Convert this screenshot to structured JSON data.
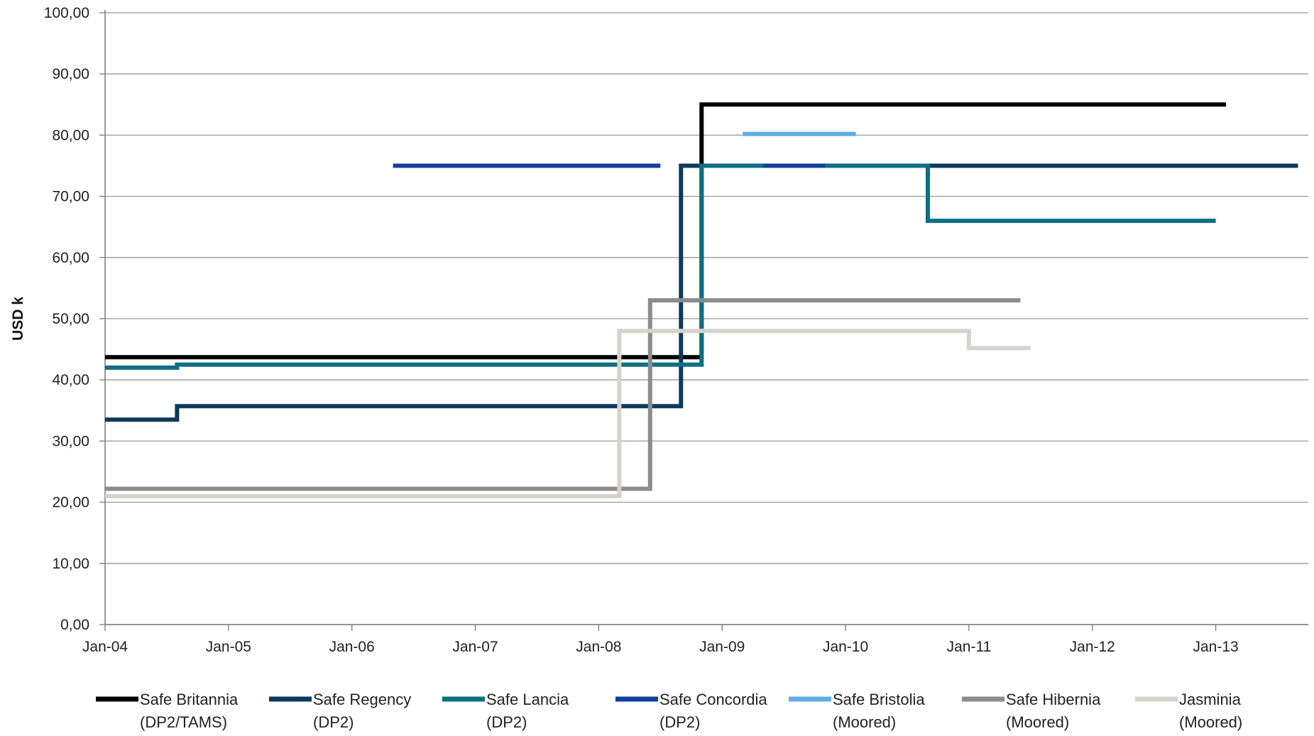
{
  "chart_data": {
    "type": "line",
    "step": true,
    "ylabel": "USD k",
    "xlabel": "",
    "ylim": [
      0,
      100
    ],
    "yticks": [
      "0,00",
      "10,00",
      "20,00",
      "30,00",
      "40,00",
      "50,00",
      "60,00",
      "70,00",
      "80,00",
      "90,00",
      "100,00"
    ],
    "xticks": [
      "Jan-04",
      "Jan-05",
      "Jan-06",
      "Jan-07",
      "Jan-08",
      "Jan-09",
      "Jan-10",
      "Jan-11",
      "Jan-12",
      "Jan-13"
    ],
    "xlim": [
      "2004-01",
      "2013-10"
    ],
    "grid": "horizontal",
    "legend_position": "bottom",
    "series": [
      {
        "name": "Safe Britannia\n(DP2/TAMS)",
        "color": "#000000",
        "points": [
          [
            "2004-01",
            43.7
          ],
          [
            "2008-11",
            43.7
          ],
          [
            "2008-11",
            85
          ],
          [
            "2013-02",
            85
          ]
        ]
      },
      {
        "name": "Safe Regency\n(DP2)",
        "color": "#0d3a5c",
        "points": [
          [
            "2004-01",
            33.5
          ],
          [
            "2004-08",
            33.5
          ],
          [
            "2004-08",
            35.7
          ],
          [
            "2008-09",
            35.7
          ],
          [
            "2008-09",
            75
          ],
          [
            "2013-09",
            75
          ]
        ]
      },
      {
        "name": "Safe Lancia\n(DP2)",
        "color": "#0f6e82",
        "points": [
          [
            "2004-01",
            42
          ],
          [
            "2004-08",
            42
          ],
          [
            "2004-08",
            42.5
          ],
          [
            "2008-11",
            42.5
          ],
          [
            "2008-11",
            75
          ],
          [
            "2010-09",
            75
          ],
          [
            "2010-09",
            66
          ],
          [
            "2013-01",
            66
          ]
        ]
      },
      {
        "name": "Safe Concordia\n(DP2)",
        "color": "#123f9e",
        "segments": [
          [
            [
              "2006-05",
              75
            ],
            [
              "2008-07",
              75
            ]
          ],
          [
            [
              "2009-05",
              75
            ],
            [
              "2009-11",
              75
            ]
          ]
        ]
      },
      {
        "name": "Safe Bristolia\n(Moored)",
        "color": "#62ade3",
        "points": [
          [
            "2009-03",
            80.2
          ],
          [
            "2010-02",
            80.2
          ]
        ]
      },
      {
        "name": "Safe Hibernia\n(Moored)",
        "color": "#8c8c8c",
        "points": [
          [
            "2004-01",
            22.2
          ],
          [
            "2008-06",
            22.2
          ],
          [
            "2008-06",
            53
          ],
          [
            "2011-06",
            53
          ]
        ]
      },
      {
        "name": "Jasminia\n(Moored)",
        "color": "#d6d3cc",
        "points": [
          [
            "2004-01",
            21
          ],
          [
            "2008-03",
            21
          ],
          [
            "2008-03",
            48
          ],
          [
            "2011-01",
            48
          ],
          [
            "2011-01",
            45.2
          ],
          [
            "2011-07",
            45.2
          ]
        ]
      }
    ]
  }
}
